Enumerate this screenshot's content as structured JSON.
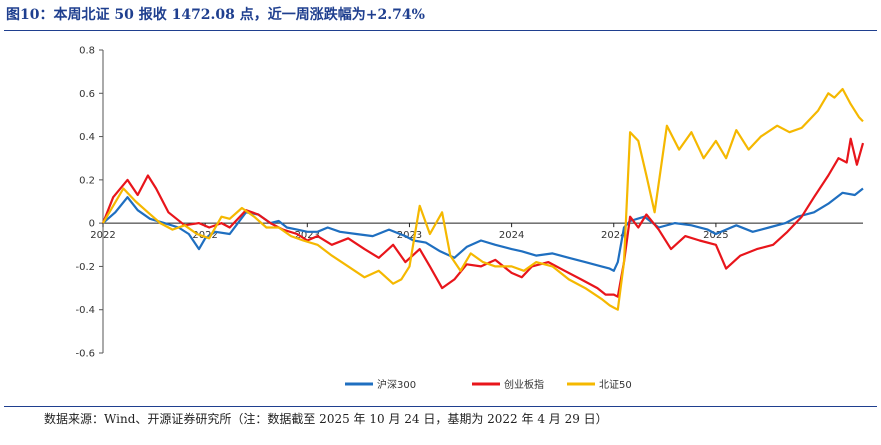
{
  "title": "图10：本周北证 50 报收 1472.08 点，近一周涨跌幅为+2.74%",
  "source": "数据来源：Wind、开源证券研究所（注：数据截至 2025 年 10 月 24 日，基期为 2022 年 4 月 29 日）",
  "chart_data": {
    "type": "line",
    "title": "本周北证 50 报收 1472.08 点，近一周涨跌幅为+2.74%",
    "xlabel": "",
    "ylabel": "",
    "ylim": [
      -0.6,
      0.8
    ],
    "yticks": [
      "0.8",
      "0.6",
      "0.4",
      "0.2",
      "0",
      "-0.2",
      "-0.4",
      "-0.6"
    ],
    "yticks_values": [
      0.8,
      0.6,
      0.4,
      0.2,
      0,
      -0.2,
      -0.4,
      -0.6
    ],
    "xlim": [
      2022.0,
      2025.72
    ],
    "xticks": [
      "2022",
      "2022",
      "2023",
      "2023",
      "2024",
      "2024",
      "2025"
    ],
    "xticks_values": [
      2022.0,
      2022.5,
      2023.0,
      2023.5,
      2024.0,
      2024.5,
      2025.0
    ],
    "legend_position": "bottom",
    "colors": {
      "hs300": "#1f6fc0",
      "cyb": "#e8151b",
      "bz50": "#f5b800"
    },
    "series": [
      {
        "name": "沪深300",
        "key": "hs300",
        "x": [
          2022.0,
          2022.06,
          2022.12,
          2022.17,
          2022.23,
          2022.3,
          2022.37,
          2022.42,
          2022.47,
          2022.5,
          2022.55,
          2022.62,
          2022.7,
          2022.76,
          2022.82,
          2022.86,
          2022.9,
          2022.95,
          2023.0,
          2023.05,
          2023.1,
          2023.16,
          2023.24,
          2023.32,
          2023.4,
          2023.48,
          2023.52,
          2023.58,
          2023.65,
          2023.72,
          2023.78,
          2023.85,
          2023.92,
          2024.0,
          2024.05,
          2024.12,
          2024.2,
          2024.28,
          2024.36,
          2024.44,
          2024.48,
          2024.5,
          2024.52,
          2024.55,
          2024.58,
          2024.65,
          2024.72,
          2024.8,
          2024.88,
          2024.96,
          2025.0,
          2025.05,
          2025.1,
          2025.18,
          2025.26,
          2025.34,
          2025.4,
          2025.48,
          2025.55,
          2025.62,
          2025.68,
          2025.72
        ],
        "values": [
          0.0,
          0.05,
          0.12,
          0.06,
          0.02,
          0.0,
          -0.02,
          -0.05,
          -0.12,
          -0.07,
          -0.04,
          -0.05,
          0.05,
          0.04,
          0.0,
          0.01,
          -0.02,
          -0.03,
          -0.04,
          -0.04,
          -0.02,
          -0.04,
          -0.05,
          -0.06,
          -0.03,
          -0.06,
          -0.08,
          -0.09,
          -0.13,
          -0.16,
          -0.11,
          -0.08,
          -0.1,
          -0.12,
          -0.13,
          -0.15,
          -0.14,
          -0.16,
          -0.18,
          -0.2,
          -0.21,
          -0.22,
          -0.18,
          -0.02,
          0.01,
          0.03,
          -0.02,
          0.0,
          -0.01,
          -0.03,
          -0.05,
          -0.03,
          -0.01,
          -0.04,
          -0.02,
          0.0,
          0.03,
          0.05,
          0.09,
          0.14,
          0.13,
          0.16
        ]
      },
      {
        "name": "创业板指",
        "key": "cyb",
        "x": [
          2022.0,
          2022.05,
          2022.12,
          2022.17,
          2022.22,
          2022.26,
          2022.32,
          2022.4,
          2022.47,
          2022.52,
          2022.58,
          2022.62,
          2022.7,
          2022.76,
          2022.82,
          2022.88,
          2022.95,
          2023.0,
          2023.05,
          2023.12,
          2023.2,
          2023.28,
          2023.35,
          2023.42,
          2023.48,
          2023.55,
          2023.6,
          2023.66,
          2023.72,
          2023.78,
          2023.85,
          2023.92,
          2024.0,
          2024.05,
          2024.1,
          2024.18,
          2024.26,
          2024.34,
          2024.42,
          2024.46,
          2024.5,
          2024.52,
          2024.55,
          2024.58,
          2024.62,
          2024.66,
          2024.72,
          2024.78,
          2024.85,
          2024.92,
          2025.0,
          2025.05,
          2025.12,
          2025.2,
          2025.28,
          2025.35,
          2025.42,
          2025.48,
          2025.55,
          2025.6,
          2025.64,
          2025.66,
          2025.69,
          2025.72
        ],
        "values": [
          0.0,
          0.12,
          0.2,
          0.13,
          0.22,
          0.16,
          0.05,
          -0.01,
          0.0,
          -0.02,
          0.0,
          -0.02,
          0.06,
          0.04,
          0.0,
          -0.03,
          -0.05,
          -0.08,
          -0.06,
          -0.1,
          -0.07,
          -0.12,
          -0.16,
          -0.1,
          -0.18,
          -0.12,
          -0.2,
          -0.3,
          -0.26,
          -0.19,
          -0.2,
          -0.17,
          -0.23,
          -0.25,
          -0.2,
          -0.18,
          -0.22,
          -0.26,
          -0.3,
          -0.33,
          -0.33,
          -0.34,
          -0.18,
          0.03,
          -0.02,
          0.04,
          -0.03,
          -0.12,
          -0.06,
          -0.08,
          -0.1,
          -0.21,
          -0.15,
          -0.12,
          -0.1,
          -0.04,
          0.03,
          0.12,
          0.22,
          0.3,
          0.28,
          0.39,
          0.27,
          0.37
        ]
      },
      {
        "name": "北证50",
        "key": "bz50",
        "x": [
          2022.0,
          2022.05,
          2022.1,
          2022.16,
          2022.22,
          2022.28,
          2022.34,
          2022.4,
          2022.46,
          2022.52,
          2022.58,
          2022.62,
          2022.68,
          2022.74,
          2022.8,
          2022.86,
          2022.92,
          2022.98,
          2023.05,
          2023.12,
          2023.2,
          2023.28,
          2023.35,
          2023.42,
          2023.46,
          2023.5,
          2023.55,
          2023.6,
          2023.66,
          2023.7,
          2023.75,
          2023.8,
          2023.86,
          2023.92,
          2024.0,
          2024.06,
          2024.12,
          2024.2,
          2024.28,
          2024.36,
          2024.44,
          2024.48,
          2024.5,
          2024.52,
          2024.55,
          2024.58,
          2024.62,
          2024.66,
          2024.7,
          2024.76,
          2024.82,
          2024.88,
          2024.94,
          2025.0,
          2025.05,
          2025.1,
          2025.16,
          2025.22,
          2025.3,
          2025.36,
          2025.42,
          2025.5,
          2025.55,
          2025.58,
          2025.62,
          2025.66,
          2025.7,
          2025.72
        ],
        "values": [
          0.0,
          0.08,
          0.16,
          0.1,
          0.05,
          0.0,
          -0.03,
          -0.01,
          -0.05,
          -0.07,
          0.03,
          0.02,
          0.07,
          0.03,
          -0.02,
          -0.02,
          -0.06,
          -0.08,
          -0.1,
          -0.15,
          -0.2,
          -0.25,
          -0.22,
          -0.28,
          -0.26,
          -0.2,
          0.08,
          -0.05,
          0.05,
          -0.15,
          -0.22,
          -0.14,
          -0.18,
          -0.2,
          -0.2,
          -0.22,
          -0.18,
          -0.2,
          -0.26,
          -0.3,
          -0.35,
          -0.38,
          -0.39,
          -0.4,
          -0.18,
          0.42,
          0.38,
          0.22,
          0.05,
          0.45,
          0.34,
          0.42,
          0.3,
          0.38,
          0.3,
          0.43,
          0.34,
          0.4,
          0.45,
          0.42,
          0.44,
          0.52,
          0.6,
          0.58,
          0.62,
          0.55,
          0.49,
          0.47
        ]
      }
    ]
  }
}
